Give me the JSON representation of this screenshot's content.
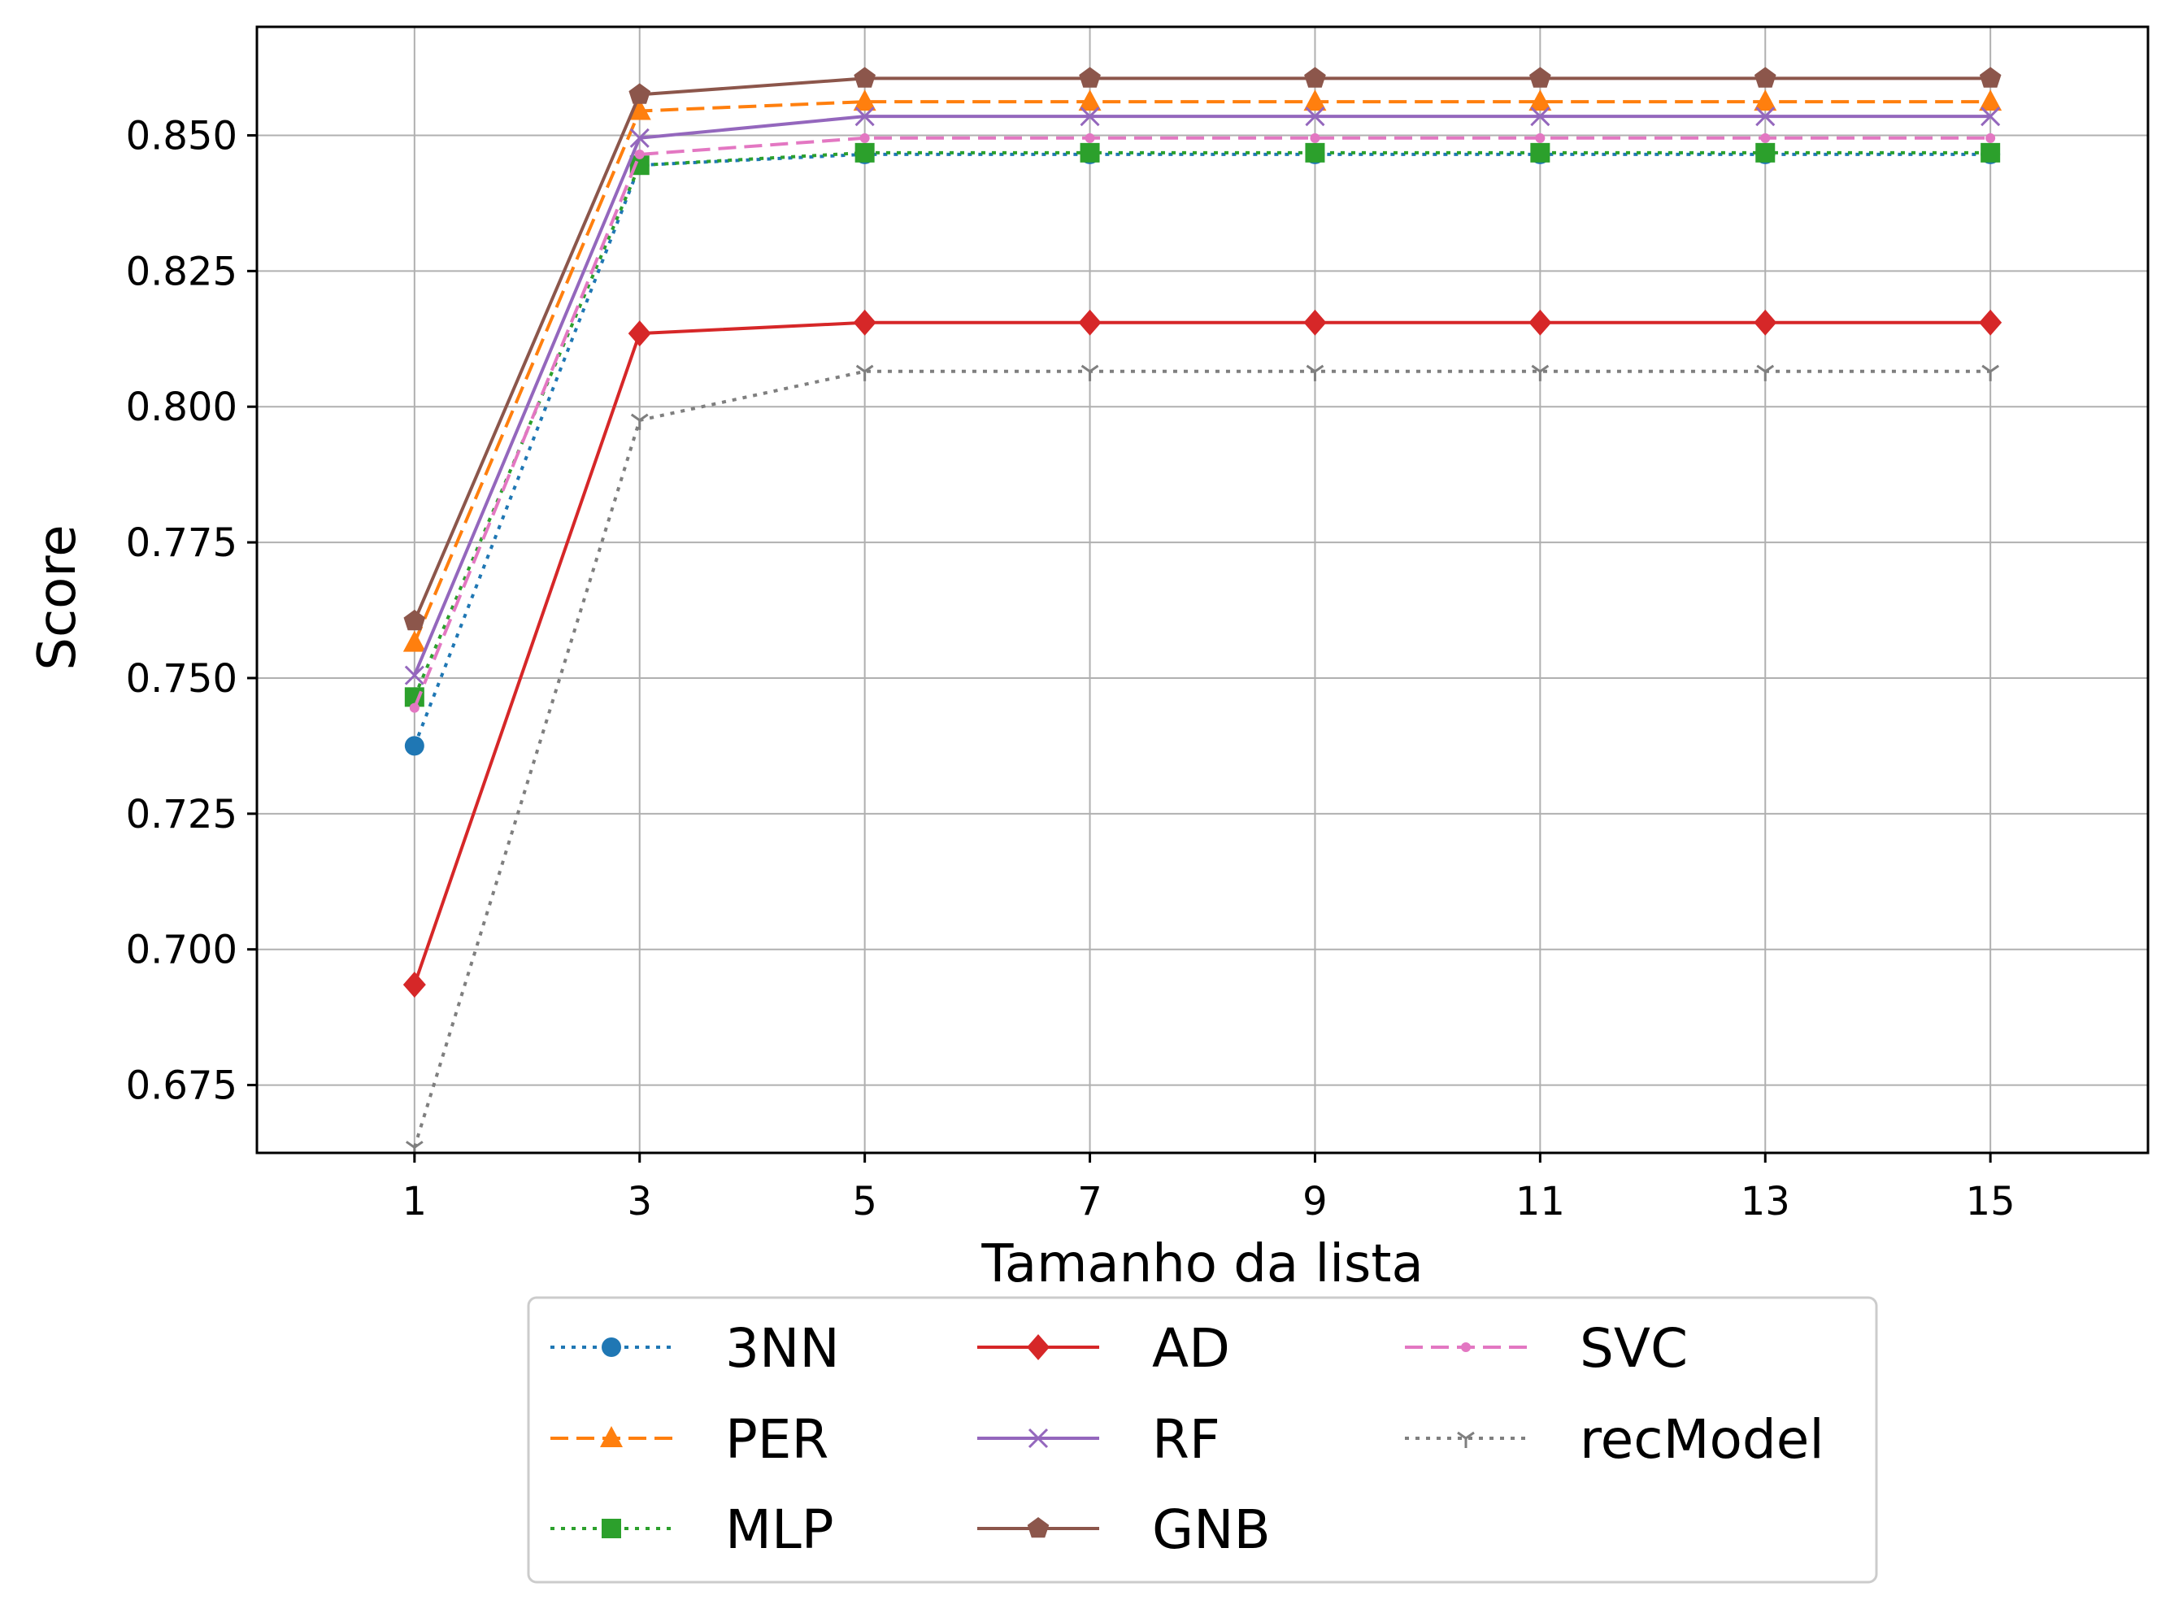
{
  "chart_data": {
    "type": "line",
    "title": "",
    "xlabel": "Tamanho da lista",
    "ylabel": "Score",
    "x": [
      1,
      3,
      5,
      7,
      9,
      11,
      13,
      15
    ],
    "xlim": [
      -0.4,
      16.4
    ],
    "ylim": [
      0.6625,
      0.87
    ],
    "xticks": [
      "1",
      "3",
      "5",
      "7",
      "9",
      "11",
      "13",
      "15"
    ],
    "yticks": [
      "0.675",
      "0.700",
      "0.725",
      "0.750",
      "0.775",
      "0.800",
      "0.825",
      "0.850"
    ],
    "grid": true,
    "legend": {
      "placement": "bottom-center, below axes",
      "columns": 3
    },
    "series": [
      {
        "name": "3NN",
        "color": "#1f77b4",
        "linestyle": "dotted",
        "marker": "circle",
        "values": [
          0.7375,
          0.8445,
          0.8465,
          0.8465,
          0.8465,
          0.8465,
          0.8465,
          0.8465
        ]
      },
      {
        "name": "PER",
        "color": "#ff7f0e",
        "linestyle": "dashed",
        "marker": "triangle-up",
        "values": [
          0.7565,
          0.8545,
          0.8562,
          0.8562,
          0.8562,
          0.8562,
          0.8562,
          0.8562
        ]
      },
      {
        "name": "MLP",
        "color": "#2ca02c",
        "linestyle": "dotted",
        "marker": "square",
        "values": [
          0.7465,
          0.8445,
          0.8468,
          0.8468,
          0.8468,
          0.8468,
          0.8468,
          0.8468
        ]
      },
      {
        "name": "AD",
        "color": "#d62728",
        "linestyle": "solid",
        "marker": "diamond",
        "values": [
          0.6935,
          0.8135,
          0.8155,
          0.8155,
          0.8155,
          0.8155,
          0.8155,
          0.8155
        ]
      },
      {
        "name": "RF",
        "color": "#9467bd",
        "linestyle": "solid",
        "marker": "x",
        "values": [
          0.7505,
          0.8495,
          0.8535,
          0.8535,
          0.8535,
          0.8535,
          0.8535,
          0.8535
        ]
      },
      {
        "name": "GNB",
        "color": "#8c564b",
        "linestyle": "solid",
        "marker": "pentagon",
        "values": [
          0.7605,
          0.8575,
          0.8605,
          0.8605,
          0.8605,
          0.8605,
          0.8605,
          0.8605
        ]
      },
      {
        "name": "SVC",
        "color": "#e377c2",
        "linestyle": "dashed",
        "marker": "point",
        "values": [
          0.7445,
          0.8465,
          0.8495,
          0.8495,
          0.8495,
          0.8495,
          0.8495,
          0.8495
        ]
      },
      {
        "name": "recModel",
        "color": "#7f7f7f",
        "linestyle": "dotted",
        "marker": "tri-down",
        "values": [
          0.6635,
          0.7975,
          0.8065,
          0.8065,
          0.8065,
          0.8065,
          0.8065,
          0.8065
        ]
      }
    ]
  }
}
